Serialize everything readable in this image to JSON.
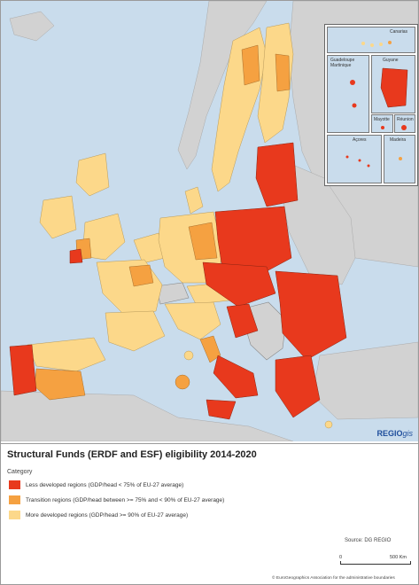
{
  "legend": {
    "title": "Structural Funds (ERDF and ESF) eligibility 2014-2020",
    "category_header": "Category",
    "items": [
      {
        "label": "Less developed regions (GDP/head < 75% of EU-27 average)",
        "color": "#e8391d"
      },
      {
        "label": "Transition regions (GDP/head between >= 75% and < 90% of EU-27 average)",
        "color": "#f5a141"
      },
      {
        "label": "More developed regions (GDP/head >= 90% of EU-27 average)",
        "color": "#fcd88a"
      }
    ]
  },
  "colors": {
    "sea": "#c9dcec",
    "non_eu": "#d2d2d2",
    "less_developed": "#e8391d",
    "transition": "#f5a141",
    "more_developed": "#fcd88a"
  },
  "insets": {
    "canarias": "Canarias",
    "guadeloupe_martinique": "Guadeloupe\nMartinique",
    "guyane": "Guyane",
    "mayotte": "Mayotte",
    "reunion": "Réunion",
    "acores": "Açores",
    "madeira": "Madeira"
  },
  "brand": {
    "main": "REGIO",
    "suffix": "gis"
  },
  "source": "Source: DG REGIO",
  "scale": {
    "zero": "0",
    "end": "500 Km"
  },
  "copyright": "© EuroGeographics Association for the administrative boundaries"
}
